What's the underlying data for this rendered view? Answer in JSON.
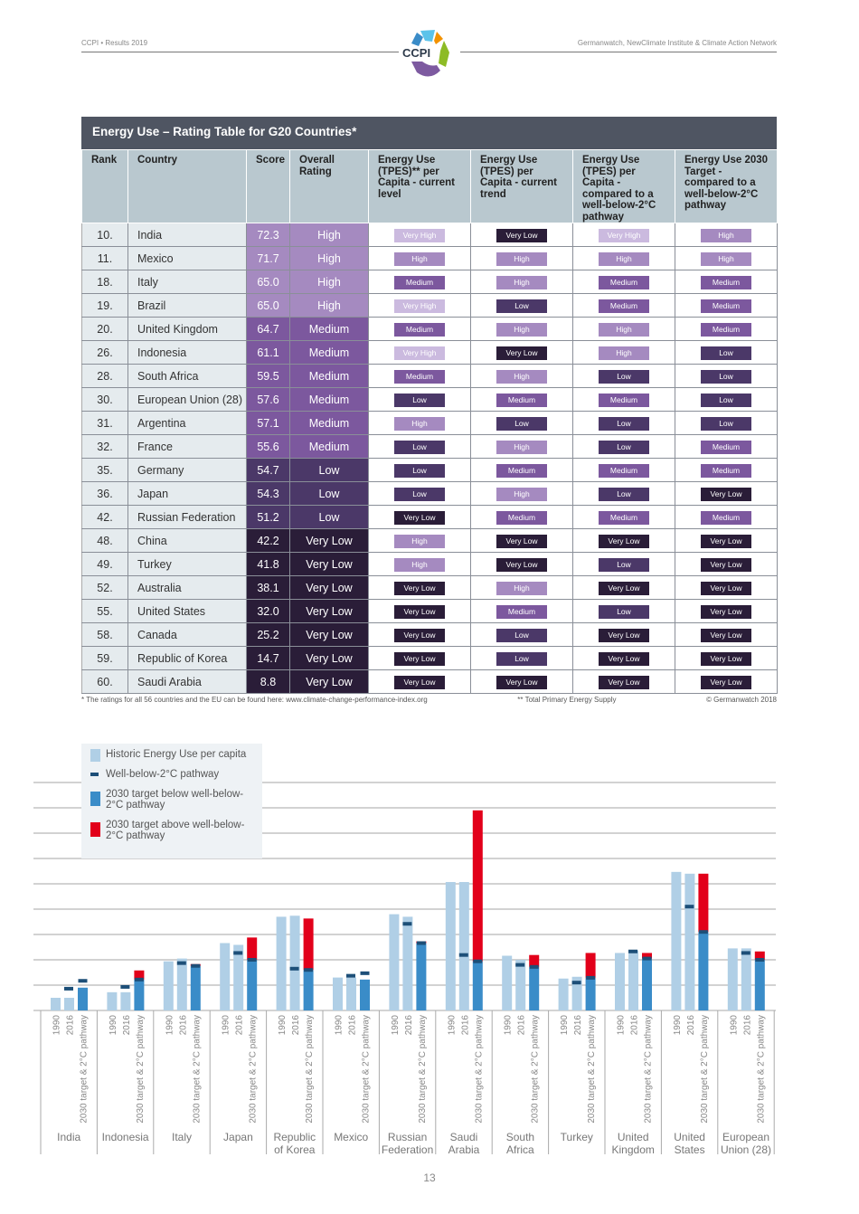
{
  "header": {
    "left": "CCPI • Results 2019",
    "right": "Germanwatch, NewClimate Institute & Climate Action Network",
    "logo_text": "CCPI"
  },
  "table": {
    "title": "Energy Use – Rating Table for G20 Countries*",
    "columns": [
      "Rank",
      "Country",
      "Score",
      "Overall Rating",
      "Energy Use (TPES)** per Capita - current level",
      "Energy Use (TPES) per Capita - current trend",
      "Energy Use (TPES) per Capita - compared to a well-below-2°C pathway",
      "Energy Use 2030 Target - compared to a well-below-2°C pathway"
    ],
    "rating_colors": {
      "Very High": "#cbbadf",
      "High": "#a58ac0",
      "Medium": "#7c589e",
      "Low": "#4b3868",
      "Very Low": "#2a1d38"
    },
    "rows": [
      {
        "rank": "10.",
        "country": "India",
        "score": "72.3",
        "overall": "High",
        "r": [
          "Very High",
          "Very Low",
          "Very High",
          "High"
        ]
      },
      {
        "rank": "11.",
        "country": "Mexico",
        "score": "71.7",
        "overall": "High",
        "r": [
          "High",
          "High",
          "High",
          "High"
        ]
      },
      {
        "rank": "18.",
        "country": "Italy",
        "score": "65.0",
        "overall": "High",
        "r": [
          "Medium",
          "High",
          "Medium",
          "Medium"
        ]
      },
      {
        "rank": "19.",
        "country": "Brazil",
        "score": "65.0",
        "overall": "High",
        "r": [
          "Very High",
          "Low",
          "Medium",
          "Medium"
        ]
      },
      {
        "rank": "20.",
        "country": "United Kingdom",
        "score": "64.7",
        "overall": "Medium",
        "r": [
          "Medium",
          "High",
          "High",
          "Medium"
        ]
      },
      {
        "rank": "26.",
        "country": "Indonesia",
        "score": "61.1",
        "overall": "Medium",
        "r": [
          "Very High",
          "Very Low",
          "High",
          "Low"
        ]
      },
      {
        "rank": "28.",
        "country": "South Africa",
        "score": "59.5",
        "overall": "Medium",
        "r": [
          "Medium",
          "High",
          "Low",
          "Low"
        ]
      },
      {
        "rank": "30.",
        "country": "European Union (28)",
        "score": "57.6",
        "overall": "Medium",
        "r": [
          "Low",
          "Medium",
          "Medium",
          "Low"
        ]
      },
      {
        "rank": "31.",
        "country": "Argentina",
        "score": "57.1",
        "overall": "Medium",
        "r": [
          "High",
          "Low",
          "Low",
          "Low"
        ]
      },
      {
        "rank": "32.",
        "country": "France",
        "score": "55.6",
        "overall": "Medium",
        "r": [
          "Low",
          "High",
          "Low",
          "Medium"
        ]
      },
      {
        "rank": "35.",
        "country": "Germany",
        "score": "54.7",
        "overall": "Low",
        "r": [
          "Low",
          "Medium",
          "Medium",
          "Medium"
        ]
      },
      {
        "rank": "36.",
        "country": "Japan",
        "score": "54.3",
        "overall": "Low",
        "r": [
          "Low",
          "High",
          "Low",
          "Very Low"
        ]
      },
      {
        "rank": "42.",
        "country": "Russian Federation",
        "score": "51.2",
        "overall": "Low",
        "r": [
          "Very Low",
          "Medium",
          "Medium",
          "Medium"
        ]
      },
      {
        "rank": "48.",
        "country": "China",
        "score": "42.2",
        "overall": "Very Low",
        "r": [
          "High",
          "Very Low",
          "Very Low",
          "Very Low"
        ]
      },
      {
        "rank": "49.",
        "country": "Turkey",
        "score": "41.8",
        "overall": "Very Low",
        "r": [
          "High",
          "Very Low",
          "Low",
          "Very Low"
        ]
      },
      {
        "rank": "52.",
        "country": "Australia",
        "score": "38.1",
        "overall": "Very Low",
        "r": [
          "Very Low",
          "High",
          "Very Low",
          "Very Low"
        ]
      },
      {
        "rank": "55.",
        "country": "United States",
        "score": "32.0",
        "overall": "Very Low",
        "r": [
          "Very Low",
          "Medium",
          "Low",
          "Very Low"
        ]
      },
      {
        "rank": "58.",
        "country": "Canada",
        "score": "25.2",
        "overall": "Very Low",
        "r": [
          "Very Low",
          "Low",
          "Very Low",
          "Very Low"
        ]
      },
      {
        "rank": "59.",
        "country": "Republic of Korea",
        "score": "14.7",
        "overall": "Very Low",
        "r": [
          "Very Low",
          "Low",
          "Very Low",
          "Very Low"
        ]
      },
      {
        "rank": "60.",
        "country": "Saudi Arabia",
        "score": "8.8",
        "overall": "Very Low",
        "r": [
          "Very Low",
          "Very Low",
          "Very Low",
          "Very Low"
        ]
      }
    ],
    "footnote": "* The ratings for all 56 countries and the EU can be found here: www.climate-change-performance-index.org",
    "footnote2": "** Total Primary Energy Supply",
    "copyright": "© Germanwatch 2018"
  },
  "chart_data": {
    "type": "bar",
    "title": "",
    "xlabel": "",
    "ylabel": "",
    "grid": true,
    "legend": {
      "position": "top-left",
      "items": [
        {
          "label": "Historic Energy Use per capita",
          "color": "#b0cfe6"
        },
        {
          "label": "Well-below-2°C pathway",
          "color": "#1d4f78"
        },
        {
          "label": "2030 target below well-below-2°C pathway",
          "color": "#3a8cc8"
        },
        {
          "label": "2030 target above well-below-2°C pathway",
          "color": "#e2001a"
        }
      ]
    },
    "bar_labels": [
      "1990",
      "2016",
      "2030 target & 2°C pathway"
    ],
    "categories": [
      "India",
      "Indonesia",
      "Italy",
      "Japan",
      "Republic of Korea",
      "Mexico",
      "Russian Federation",
      "Saudi Arabia",
      "South Africa",
      "Turkey",
      "United Kingdom",
      "United States",
      "European Union (28)"
    ],
    "category_lines": [
      [
        "India"
      ],
      [
        "Indonesia"
      ],
      [
        "Italy"
      ],
      [
        "Japan"
      ],
      [
        "Republic",
        "of Korea"
      ],
      [
        "Mexico"
      ],
      [
        "Russian",
        "Federation"
      ],
      [
        "Saudi",
        "Arabia"
      ],
      [
        "South",
        "Africa"
      ],
      [
        "Turkey"
      ],
      [
        "United",
        "Kingdom"
      ],
      [
        "United",
        "States"
      ],
      [
        "European",
        "Union (28)"
      ]
    ],
    "series": [
      {
        "name": "1990",
        "values": [
          0.5,
          0.72,
          1.94,
          2.66,
          3.7,
          1.3,
          3.8,
          5.07,
          2.16,
          1.26,
          2.27,
          5.47,
          2.45
        ]
      },
      {
        "name": "2016",
        "values": [
          0.5,
          0.72,
          2.05,
          2.59,
          3.74,
          1.3,
          3.7,
          5.07,
          2.0,
          1.33,
          2.37,
          5.4,
          2.45
        ]
      },
      {
        "name": "Well-below-2°C pathway 2016",
        "values": [
          0.86,
          0.93,
          1.87,
          2.27,
          1.65,
          1.37,
          3.42,
          2.19,
          1.8,
          1.1,
          2.33,
          4.1,
          2.27
        ]
      },
      {
        "name": "2030 target",
        "values": [
          0.9,
          1.58,
          1.83,
          2.88,
          3.63,
          1.22,
          2.73,
          7.9,
          2.19,
          2.27,
          2.27,
          5.4,
          2.33
        ]
      },
      {
        "name": "Well-below-2°C pathway 2030",
        "values": [
          1.17,
          1.22,
          1.76,
          2.0,
          1.6,
          1.47,
          2.66,
          1.94,
          1.72,
          1.29,
          2.05,
          3.1,
          2.0
        ]
      }
    ],
    "ylim": [
      0,
      9
    ]
  },
  "page_number": "13"
}
